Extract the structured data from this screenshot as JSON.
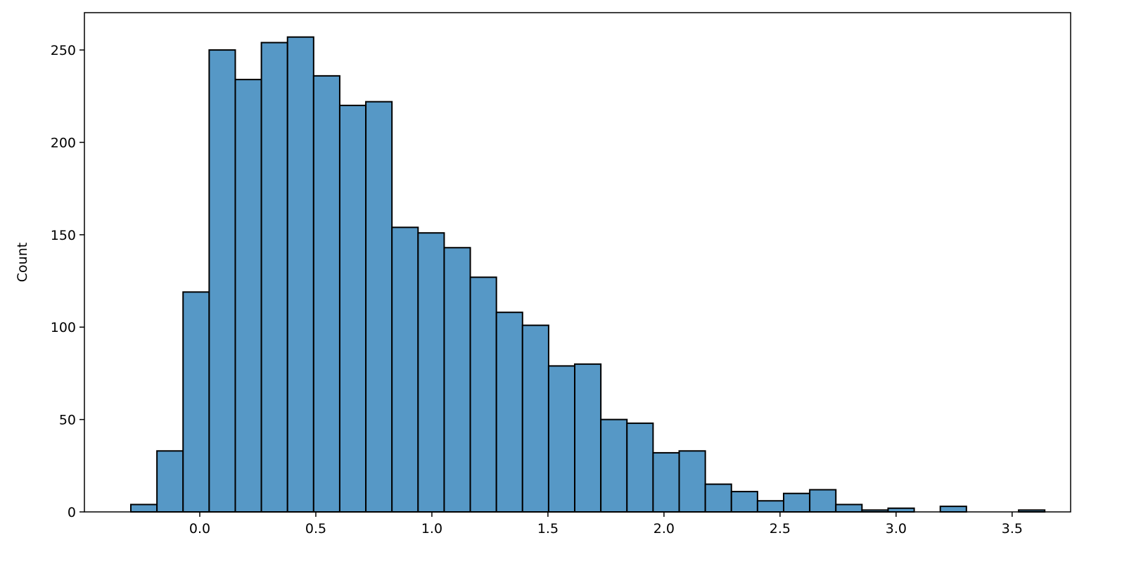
{
  "chart_data": {
    "type": "histogram",
    "y_label": "Count",
    "bins": [
      -0.297,
      -0.1845,
      -0.072,
      0.0405,
      0.153,
      0.2655,
      0.378,
      0.4905,
      0.603,
      0.7155,
      0.828,
      0.9405,
      1.053,
      1.1655,
      1.278,
      1.3905,
      1.503,
      1.6155,
      1.728,
      1.8405,
      1.953,
      2.0655,
      2.178,
      2.2905,
      2.403,
      2.5155,
      2.628,
      2.7405,
      2.853,
      2.9655,
      3.078,
      3.1905,
      3.303,
      3.4155,
      3.528,
      3.6405
    ],
    "values": [
      4,
      33,
      119,
      250,
      234,
      254,
      257,
      236,
      220,
      222,
      154,
      151,
      143,
      127,
      108,
      101,
      79,
      80,
      50,
      48,
      32,
      33,
      15,
      11,
      6,
      10,
      12,
      4,
      1,
      2,
      0,
      3,
      0,
      0,
      1
    ],
    "color": "#5698c6",
    "edgecolor": "#000000",
    "xlim": [
      -0.497,
      3.752
    ],
    "xticks": [
      {
        "value": 0,
        "label": "0.0"
      },
      0.5,
      {
        "value": 1,
        "label": "1.0"
      },
      1.5,
      {
        "value": 2,
        "label": "2.0"
      },
      2.5,
      {
        "value": 3,
        "label": "3.0"
      },
      3.5
    ],
    "ylim": [
      0,
      270.2
    ],
    "yticks": [
      0,
      50,
      100,
      150,
      200,
      250
    ]
  }
}
